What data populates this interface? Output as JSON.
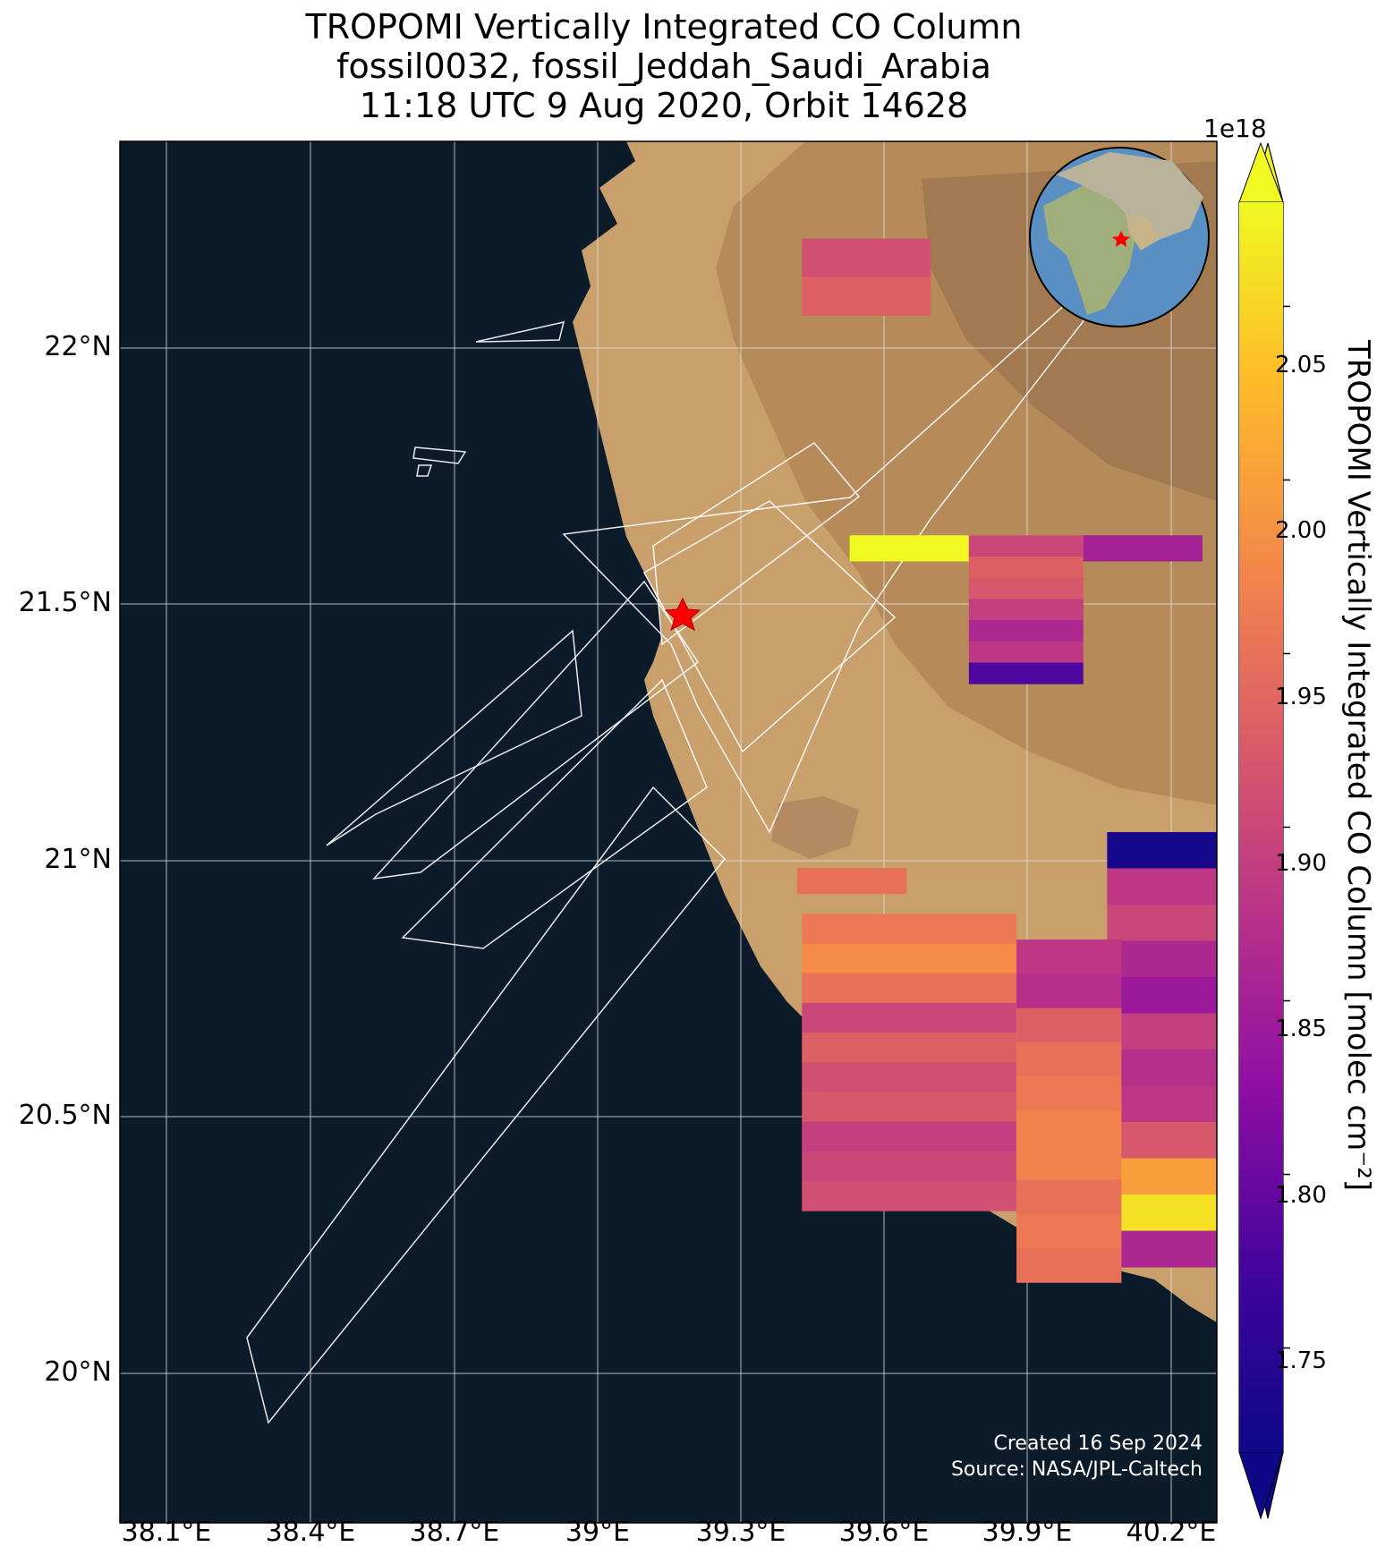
{
  "title": {
    "line1": "TROPOMI Vertically Integrated CO Column",
    "line2": "fossil0032, fossil_Jeddah_Saudi_Arabia",
    "line3": "11:18 UTC 9 Aug 2020, Orbit 14628"
  },
  "map": {
    "lat_ticks": [
      "22°N",
      "21.5°N",
      "21°N",
      "20.5°N",
      "20°N"
    ],
    "lon_ticks": [
      "38.1°E",
      "38.4°E",
      "38.7°E",
      "39°E",
      "39.3°E",
      "39.6°E",
      "39.9°E",
      "40.2°E"
    ],
    "target_marker": {
      "label": "Jeddah",
      "lon": 39.17,
      "lat": 21.48,
      "color": "#ff0000"
    },
    "credit_line1": "Created 16 Sep 2024",
    "credit_line2": "Source: NASA/JPL-Caltech",
    "colors": {
      "sea": "#0c1b2a",
      "land": "#c9a06c",
      "grid": "#e0e0e0",
      "footprint_outline": "#ffffff"
    }
  },
  "colorbar": {
    "exponent_label": "1e18",
    "ticks": [
      "2.05",
      "2.00",
      "1.95",
      "1.90",
      "1.85",
      "1.80",
      "1.75"
    ],
    "tick_values": [
      2.05,
      2.0,
      1.95,
      1.9,
      1.85,
      1.8,
      1.75
    ],
    "vmin": 1.72,
    "vmax": 2.08,
    "label": "TROPOMI Vertically Integrated CO Column [molec cm⁻²]",
    "colormap": "plasma"
  },
  "chart_data": {
    "type": "heatmap",
    "title": "TROPOMI Vertically Integrated CO Column",
    "units": "molec cm⁻²",
    "scale": 1e+18,
    "colorbar_range": [
      1.72,
      2.08
    ],
    "xlim": [
      38.0,
      40.3
    ],
    "ylim": [
      19.7,
      22.4
    ],
    "cell_groups": [
      {
        "lon_range": [
          39.43,
          39.7
        ],
        "lat_range": [
          22.06,
          22.21
        ],
        "values": [
          1.91,
          1.93
        ]
      },
      {
        "lon_range": [
          39.53,
          39.78
        ],
        "lat_range": [
          21.58,
          21.63
        ],
        "values": [
          2.08
        ]
      },
      {
        "lon_range": [
          39.78,
          40.02
        ],
        "lat_range": [
          21.34,
          21.63
        ],
        "values": [
          1.9,
          1.93,
          1.92,
          1.89,
          1.86,
          1.88,
          1.78
        ]
      },
      {
        "lon_range": [
          40.02,
          40.27
        ],
        "lat_range": [
          21.58,
          21.63
        ],
        "values": [
          1.85
        ]
      },
      {
        "lon_range": [
          39.42,
          39.65
        ],
        "lat_range": [
          20.93,
          20.98
        ],
        "values": [
          1.95
        ]
      },
      {
        "lon_range": [
          40.07,
          40.3
        ],
        "lat_range": [
          20.2,
          21.05
        ],
        "values": [
          1.73,
          1.88,
          1.9,
          1.86,
          1.84,
          1.89,
          1.87,
          1.88,
          1.92,
          2.0,
          2.06,
          1.86
        ]
      },
      {
        "lon_range": [
          39.43,
          39.88
        ],
        "lat_range": [
          20.31,
          20.89
        ],
        "values": [
          1.96,
          1.98,
          1.95,
          1.9,
          1.93,
          1.91,
          1.92,
          1.89,
          1.9,
          1.91
        ]
      },
      {
        "lon_range": [
          39.88,
          40.1
        ],
        "lat_range": [
          20.17,
          20.84
        ],
        "values": [
          1.88,
          1.87,
          1.93,
          1.95,
          1.96,
          1.97,
          1.97,
          1.95,
          1.96,
          1.95
        ]
      }
    ]
  }
}
